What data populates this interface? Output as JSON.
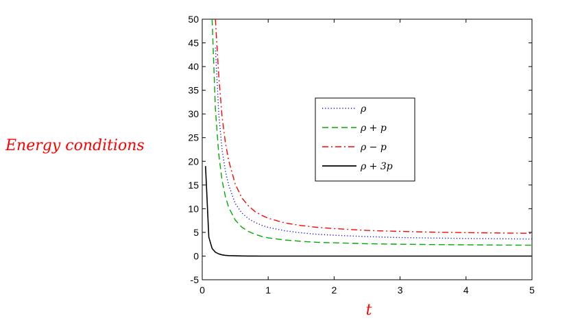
{
  "chart_data": {
    "type": "line",
    "title": "",
    "xlabel": "t",
    "ylabel": "Energy conditions",
    "xlim": [
      0,
      5
    ],
    "ylim": [
      -5,
      50
    ],
    "xticks": [
      0,
      1,
      2,
      3,
      4,
      5
    ],
    "yticks": [
      -5,
      0,
      5,
      10,
      15,
      20,
      25,
      30,
      35,
      40,
      45,
      50
    ],
    "grid": false,
    "legend_position": "upper-center",
    "x": [
      0.05,
      0.1,
      0.15,
      0.2,
      0.25,
      0.3,
      0.35,
      0.4,
      0.5,
      0.6,
      0.7,
      0.8,
      0.9,
      1.0,
      1.25,
      1.5,
      1.75,
      2.0,
      2.5,
      3.0,
      3.5,
      4.0,
      4.5,
      5.0
    ],
    "series": [
      {
        "name": "ρ   ",
        "color": "#0000ff",
        "style": "dotted",
        "values": [
          null,
          null,
          null,
          44,
          30,
          22.5,
          18,
          15,
          11.1,
          9.1,
          7.9,
          7.1,
          6.5,
          6.05,
          5.35,
          4.9,
          4.6,
          4.4,
          4.1,
          3.9,
          3.8,
          3.72,
          3.66,
          3.6
        ]
      },
      {
        "name": "ρ   + p",
        "color": "#00aa00",
        "style": "dashed",
        "values": [
          null,
          null,
          50,
          31,
          21.5,
          16,
          12.6,
          10.3,
          7.6,
          6.1,
          5.2,
          4.6,
          4.15,
          3.85,
          3.4,
          3.1,
          2.9,
          2.8,
          2.6,
          2.5,
          2.42,
          2.37,
          2.32,
          2.3
        ]
      },
      {
        "name": "ρ   − p",
        "color": "#ff0000",
        "style": "dashdot",
        "values": [
          null,
          null,
          null,
          50,
          38,
          29.5,
          24,
          20.2,
          15.2,
          12.3,
          10.6,
          9.4,
          8.6,
          8.0,
          7.0,
          6.45,
          6.05,
          5.8,
          5.4,
          5.2,
          5.05,
          4.95,
          4.87,
          4.8
        ]
      },
      {
        "name": "ρ   + 3p",
        "color": "#000000",
        "style": "solid",
        "values": [
          19,
          4,
          1.6,
          0.8,
          0.45,
          0.25,
          0.15,
          0.1,
          0.05,
          0.02,
          0.01,
          0.01,
          0.0,
          0.0,
          0.0,
          0.0,
          0.0,
          0.0,
          0.0,
          0.0,
          0.0,
          0.0,
          0.0,
          0.0
        ]
      }
    ]
  }
}
